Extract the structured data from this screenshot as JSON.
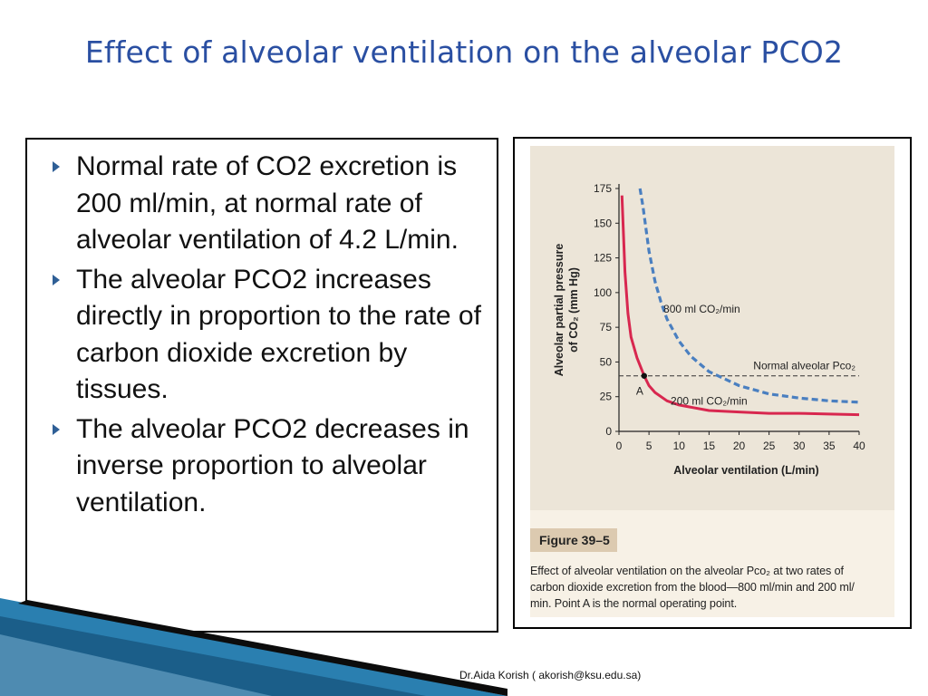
{
  "slide": {
    "title": "Effect of alveolar ventilation on the alveolar PCO2",
    "bullets": [
      "Normal rate of CO2 excretion is  200 ml/min, at normal rate of alveolar ventilation of 4.2 L/min.",
      "The alveolar PCO2 increases directly in proportion to the rate of carbon dioxide excretion by tissues.",
      "The alveolar PCO2 decreases in inverse proportion to alveolar ventilation."
    ],
    "footer": "Dr.Aida Korish ( akorish@ksu.edu.sa)"
  },
  "figure": {
    "label": "Figure 39–5",
    "caption_lines": [
      "Effect of alveolar ventilation on the alveolar Pco₂ at two rates of",
      "carbon dioxide excretion from the blood—800 ml/min and 200 ml/",
      "min. Point A is the normal operating point."
    ]
  },
  "chart_data": {
    "type": "line",
    "xlabel": "Alveolar ventilation (L/min)",
    "ylabel_line1": "Alveolar partial pressure",
    "ylabel_line2": "of CO₂ (mm Hg)",
    "xlim": [
      0,
      40
    ],
    "ylim": [
      0,
      175
    ],
    "xticks": [
      0,
      5,
      10,
      15,
      20,
      25,
      30,
      35,
      40
    ],
    "yticks": [
      0,
      25,
      50,
      75,
      100,
      125,
      150,
      175
    ],
    "series": [
      {
        "name": "800 ml CO₂/min",
        "style": "dashed",
        "color": "#4a7fc0",
        "x": [
          3.5,
          4,
          5,
          6,
          7,
          8,
          10,
          12,
          15,
          20,
          25,
          30,
          35,
          40
        ],
        "y": [
          175,
          162,
          130,
          108,
          93,
          81,
          65,
          54,
          43,
          33,
          27,
          24,
          22,
          21
        ]
      },
      {
        "name": "200 ml CO₂/min",
        "style": "solid",
        "color": "#d8274f",
        "x": [
          0.5,
          1,
          1.5,
          2,
          3,
          4.2,
          5,
          6,
          8,
          10,
          15,
          20,
          25,
          30,
          35,
          40
        ],
        "y": [
          170,
          115,
          85,
          68,
          53,
          40,
          33,
          28,
          22,
          19,
          15,
          14,
          13,
          13,
          12.5,
          12
        ]
      }
    ],
    "reference_line": {
      "y": 40,
      "label": "Normal alveolar Pco₂"
    },
    "point": {
      "label": "A",
      "x": 4.2,
      "y": 40
    },
    "colors": {
      "accent_title": "#2a4fa2",
      "grid_dash": "#333333"
    }
  }
}
